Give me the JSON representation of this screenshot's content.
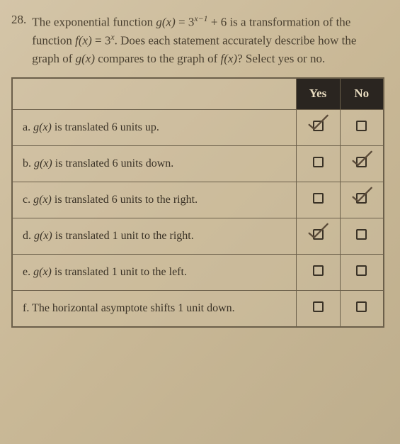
{
  "question_number": "28.",
  "question_text_parts": {
    "p1": "The exponential function ",
    "gx": "g(x)",
    "eq1": " = 3",
    "exp1": "x−1",
    "plus6": " + 6 is a transformation of the function ",
    "fx": "f(x)",
    "eq2": " = 3",
    "exp2": "x",
    "p2": ". Does each statement accurately describe how the graph of  ",
    "gx2": "g(x)",
    "p3": " compares to the graph of ",
    "fx2": "f(x)",
    "p4": "? Select yes or no."
  },
  "headers": {
    "yes": "Yes",
    "no": "No"
  },
  "rows": [
    {
      "label_prefix": "a. ",
      "fn": "g(x)",
      "label_suffix": " is translated 6 units up.",
      "yes_checked": true,
      "no_checked": false
    },
    {
      "label_prefix": "b. ",
      "fn": "g(x)",
      "label_suffix": " is translated 6 units down.",
      "yes_checked": false,
      "no_checked": true
    },
    {
      "label_prefix": "c. ",
      "fn": "g(x)",
      "label_suffix": " is translated 6 units to the right.",
      "yes_checked": false,
      "no_checked": true
    },
    {
      "label_prefix": "d. ",
      "fn": "g(x)",
      "label_suffix": " is translated 1 unit to the right.",
      "yes_checked": true,
      "no_checked": false
    },
    {
      "label_prefix": "e. ",
      "fn": "g(x)",
      "label_suffix": " is translated 1 unit to the left.",
      "yes_checked": false,
      "no_checked": false
    },
    {
      "label_prefix": "f. ",
      "fn": "",
      "label_suffix": "The horizontal asymptote shifts 1 unit down.",
      "yes_checked": false,
      "no_checked": false
    }
  ],
  "colors": {
    "header_bg": "#2a2520",
    "header_fg": "#e8dcc0",
    "border": "#6b5f4a",
    "text": "#3a3226",
    "pencil": "#5a4a38"
  }
}
